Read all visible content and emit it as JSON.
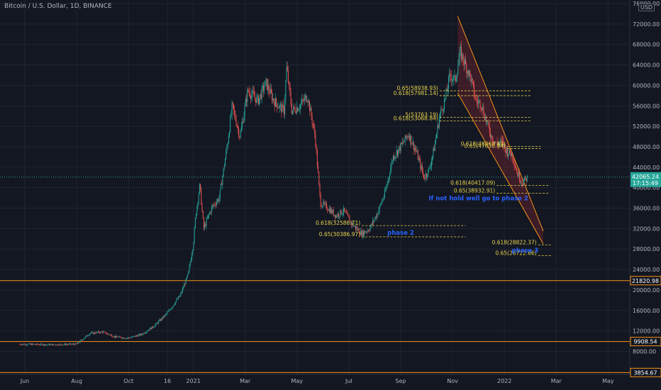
{
  "chart_data": {
    "type": "candlestick",
    "title": "Bitcoin / U.S. Dollar, 1D, BINANCE",
    "currency_label": "USD",
    "grid": true,
    "ylim": [
      0,
      76000
    ],
    "y_ticks": [
      "76000.00",
      "72000.00",
      "68000.00",
      "64000.00",
      "60000.00",
      "56000.00",
      "52000.00",
      "48000.00",
      "44000.00",
      "40000.00",
      "36000.00",
      "32000.00",
      "28000.00",
      "24000.00",
      "20000.00",
      "16000.00",
      "12000.00",
      "8000.00"
    ],
    "x_ticks": [
      {
        "label": "Jun",
        "t": 0.0
      },
      {
        "label": "Aug",
        "t": 2.0
      },
      {
        "label": "Oct",
        "t": 4.0
      },
      {
        "label": "16",
        "t": 5.5
      },
      {
        "label": "2021",
        "t": 6.5
      },
      {
        "label": "Mar",
        "t": 8.5
      },
      {
        "label": "May",
        "t": 10.5
      },
      {
        "label": "Jul",
        "t": 12.5
      },
      {
        "label": "Sep",
        "t": 14.5
      },
      {
        "label": "Nov",
        "t": 16.5
      },
      {
        "label": "2022",
        "t": 18.5
      },
      {
        "label": "Mar",
        "t": 20.5
      },
      {
        "label": "May",
        "t": 22.5
      }
    ],
    "price_path": [
      [
        -0.2,
        9400
      ],
      [
        1.0,
        9300
      ],
      [
        2.0,
        9400
      ],
      [
        2.5,
        11500
      ],
      [
        3.0,
        11800
      ],
      [
        3.5,
        10800
      ],
      [
        4.0,
        10600
      ],
      [
        4.5,
        11300
      ],
      [
        5.0,
        13000
      ],
      [
        5.5,
        15500
      ],
      [
        6.0,
        19000
      ],
      [
        6.3,
        23000
      ],
      [
        6.5,
        29000
      ],
      [
        6.6,
        35000
      ],
      [
        6.75,
        40500
      ],
      [
        6.9,
        32000
      ],
      [
        7.2,
        36000
      ],
      [
        7.5,
        38000
      ],
      [
        7.8,
        48000
      ],
      [
        8.0,
        56000
      ],
      [
        8.3,
        50000
      ],
      [
        8.6,
        59000
      ],
      [
        9.0,
        57000
      ],
      [
        9.3,
        60500
      ],
      [
        9.6,
        57000
      ],
      [
        10.0,
        55000
      ],
      [
        10.1,
        63500
      ],
      [
        10.3,
        55000
      ],
      [
        10.6,
        56000
      ],
      [
        10.9,
        58000
      ],
      [
        11.2,
        50000
      ],
      [
        11.4,
        37000
      ],
      [
        11.7,
        36000
      ],
      [
        12.0,
        34500
      ],
      [
        12.3,
        35500
      ],
      [
        12.6,
        33000
      ],
      [
        13.0,
        31000
      ],
      [
        13.3,
        32000
      ],
      [
        13.6,
        35000
      ],
      [
        13.9,
        39000
      ],
      [
        14.2,
        46000
      ],
      [
        14.5,
        48000
      ],
      [
        14.8,
        50500
      ],
      [
        15.1,
        47000
      ],
      [
        15.4,
        42000
      ],
      [
        15.6,
        43500
      ],
      [
        15.8,
        48000
      ],
      [
        16.0,
        54000
      ],
      [
        16.2,
        57000
      ],
      [
        16.4,
        62000
      ],
      [
        16.6,
        61000
      ],
      [
        16.8,
        66500
      ],
      [
        17.0,
        64000
      ],
      [
        17.2,
        61500
      ],
      [
        17.4,
        57000
      ],
      [
        17.6,
        56500
      ],
      [
        17.8,
        53000
      ],
      [
        18.0,
        50000
      ],
      [
        18.2,
        48500
      ],
      [
        18.4,
        49000
      ],
      [
        18.6,
        47000
      ],
      [
        18.8,
        46500
      ],
      [
        19.0,
        42800
      ],
      [
        19.2,
        41000
      ],
      [
        19.4,
        42000
      ]
    ],
    "horizontal_levels": [
      {
        "price": 21820.98,
        "label": "21820.98",
        "color": "#f7931a"
      },
      {
        "price": 9908.54,
        "label": "9908.54",
        "color": "#f7931a"
      },
      {
        "price": 3854.67,
        "label": "3854.67",
        "color": "#f7931a"
      }
    ],
    "current_price": {
      "price": 42065.24,
      "label": "42065.24",
      "time_left": "17:15:49",
      "color": "#26a69a"
    },
    "fib_annotations": [
      {
        "text": "0.65(58938.93)",
        "price": 58939,
        "t0": 16.0,
        "t1": 19.5
      },
      {
        "text": "0.618(57981.14)",
        "price": 57981,
        "t0": 16.0,
        "t1": 19.5
      },
      {
        "text": ".5(53763.19)",
        "price": 53763,
        "t0": 16.0,
        "t1": 19.5
      },
      {
        "text": "0.618(53068.84)",
        "price": 53069,
        "t0": 16.0,
        "t1": 19.5
      },
      {
        "text": "0.618(48060.40)",
        "price": 48060,
        "t0": 18.6,
        "t1": 19.9
      },
      {
        "text": "0.65(47638.84)",
        "price": 47639,
        "t0": 18.6,
        "t1": 19.9
      },
      {
        "text": "0.618(40417.09)",
        "price": 40417,
        "t0": 18.2,
        "t1": 20.25
      },
      {
        "text": "0.65(38932.91)",
        "price": 38933,
        "t0": 18.2,
        "t1": 20.25
      },
      {
        "text": "0.618(32586.71)",
        "price": 32587,
        "t0": 13.0,
        "t1": 17.0
      },
      {
        "text": "0.65(30386.97)",
        "price": 30387,
        "t0": 13.0,
        "t1": 17.0
      },
      {
        "text": "0.618(28822.37)",
        "price": 28822,
        "t0": 19.8,
        "t1": 20.35
      },
      {
        "text": "0.65(26722.66)",
        "price": 26723,
        "t0": 19.8,
        "t1": 20.35
      }
    ],
    "text_notes": [
      {
        "text": "If not hold well go to phase 2",
        "t": 17.5,
        "price": 37500
      },
      {
        "text": "phase 2",
        "t": 14.5,
        "price": 30800
      },
      {
        "text": "phase 3",
        "t": 19.3,
        "price": 27300
      }
    ],
    "channel": {
      "color": "#f7931a",
      "upper": [
        [
          16.7,
          73500
        ],
        [
          20.0,
          31500
        ]
      ],
      "lower": [
        [
          16.7,
          58500
        ],
        [
          20.0,
          29000
        ]
      ]
    }
  }
}
